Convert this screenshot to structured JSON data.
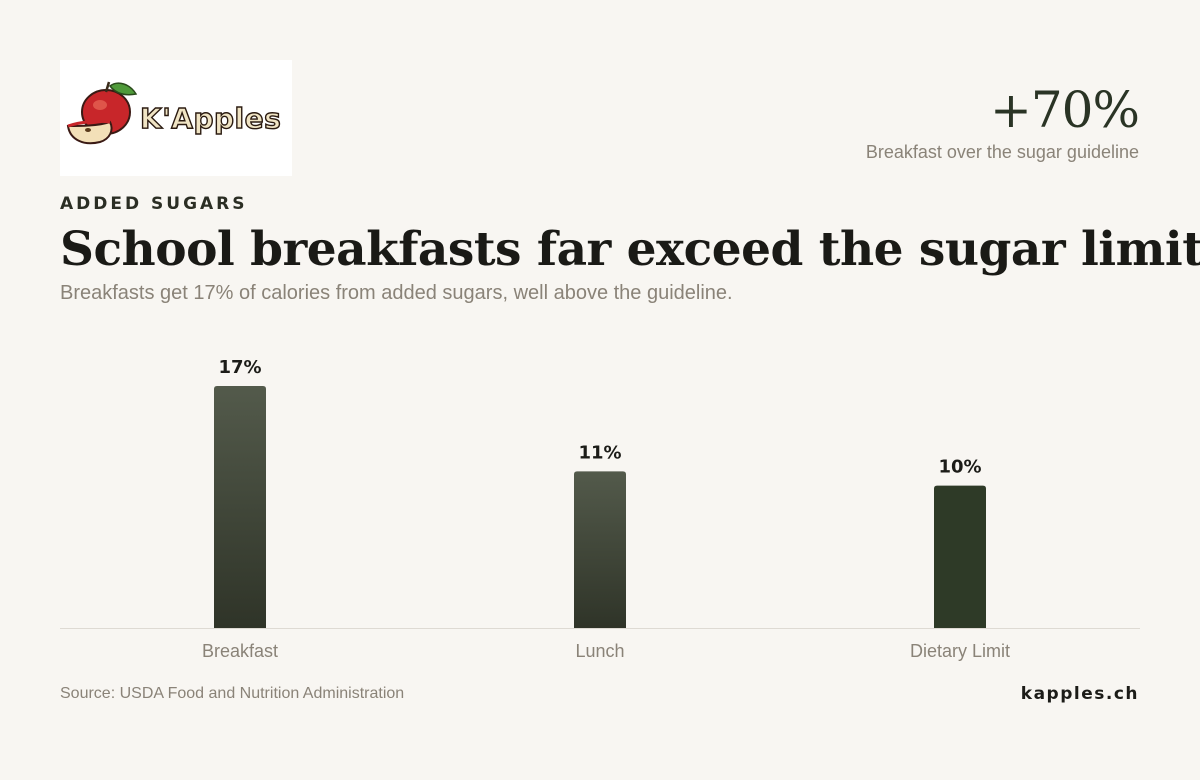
{
  "brand": {
    "logo_text": "K'Apples"
  },
  "headline_stat": {
    "value": "+70%",
    "caption": "Breakfast over the sugar guideline"
  },
  "eyebrow": "ADDED SUGARS",
  "title": "School breakfasts far exceed the sugar limit",
  "subtitle": "Breakfasts get 17% of calories from added sugars, well above the guideline.",
  "chart_data": {
    "type": "bar",
    "categories": [
      "Breakfast",
      "Lunch",
      "Dietary Limit"
    ],
    "values": [
      17,
      11,
      10
    ],
    "value_labels": [
      "17%",
      "11%",
      "10%"
    ],
    "unit": "%",
    "ylim": [
      0,
      17
    ],
    "grid": false,
    "legend": "none",
    "colors": {
      "bar_top": "#535a4b",
      "bar_bottom": "#2f3428",
      "limit_bar": "#2e3a27",
      "baseline": "#dedad3"
    }
  },
  "footer": {
    "source": "Source: USDA Food and Nutrition Administration",
    "site": "kapples.ch"
  }
}
